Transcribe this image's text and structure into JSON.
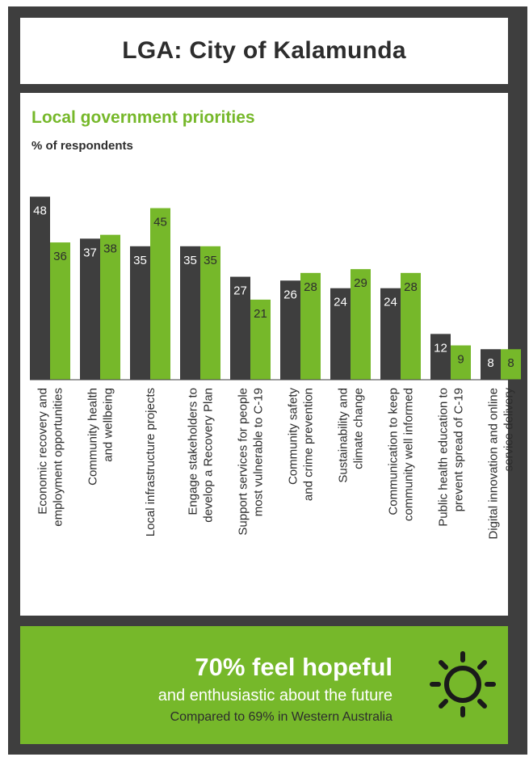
{
  "header": {
    "title": "LGA: City of Kalamunda"
  },
  "chart_data": {
    "type": "bar",
    "title": "Local government priorities",
    "subtitle": "% of respondents",
    "categories": [
      [
        "Economic recovery and",
        "employment opportunities"
      ],
      [
        "Community health",
        "and wellbeing"
      ],
      [
        "Local infrastructure projects"
      ],
      [
        "Engage stakeholders to",
        "develop a Recovery Plan"
      ],
      [
        "Support services for people",
        "most vulnerable to C-19"
      ],
      [
        "Community safety",
        "and crime prevention"
      ],
      [
        "Sustainability and",
        "climate change"
      ],
      [
        "Communication to keep",
        "community well informed"
      ],
      [
        "Public health education to",
        "prevent spread of C-19"
      ],
      [
        "Digital innovation and online",
        "service delivery"
      ]
    ],
    "series": [
      {
        "values": [
          48,
          37,
          35,
          35,
          27,
          26,
          24,
          24,
          12,
          8
        ]
      },
      {
        "values": [
          36,
          38,
          45,
          35,
          21,
          28,
          29,
          28,
          9,
          8
        ]
      }
    ],
    "ylim": [
      0,
      50
    ],
    "grid": false,
    "colors": {
      "series_dark": "#3e3e3e",
      "series_green": "#76b82a"
    }
  },
  "summary": {
    "headline": "70% feel hopeful",
    "line2": "and enthusiastic about the future",
    "line3": "Compared to 69% in Western Australia",
    "icon": "sun-icon"
  }
}
